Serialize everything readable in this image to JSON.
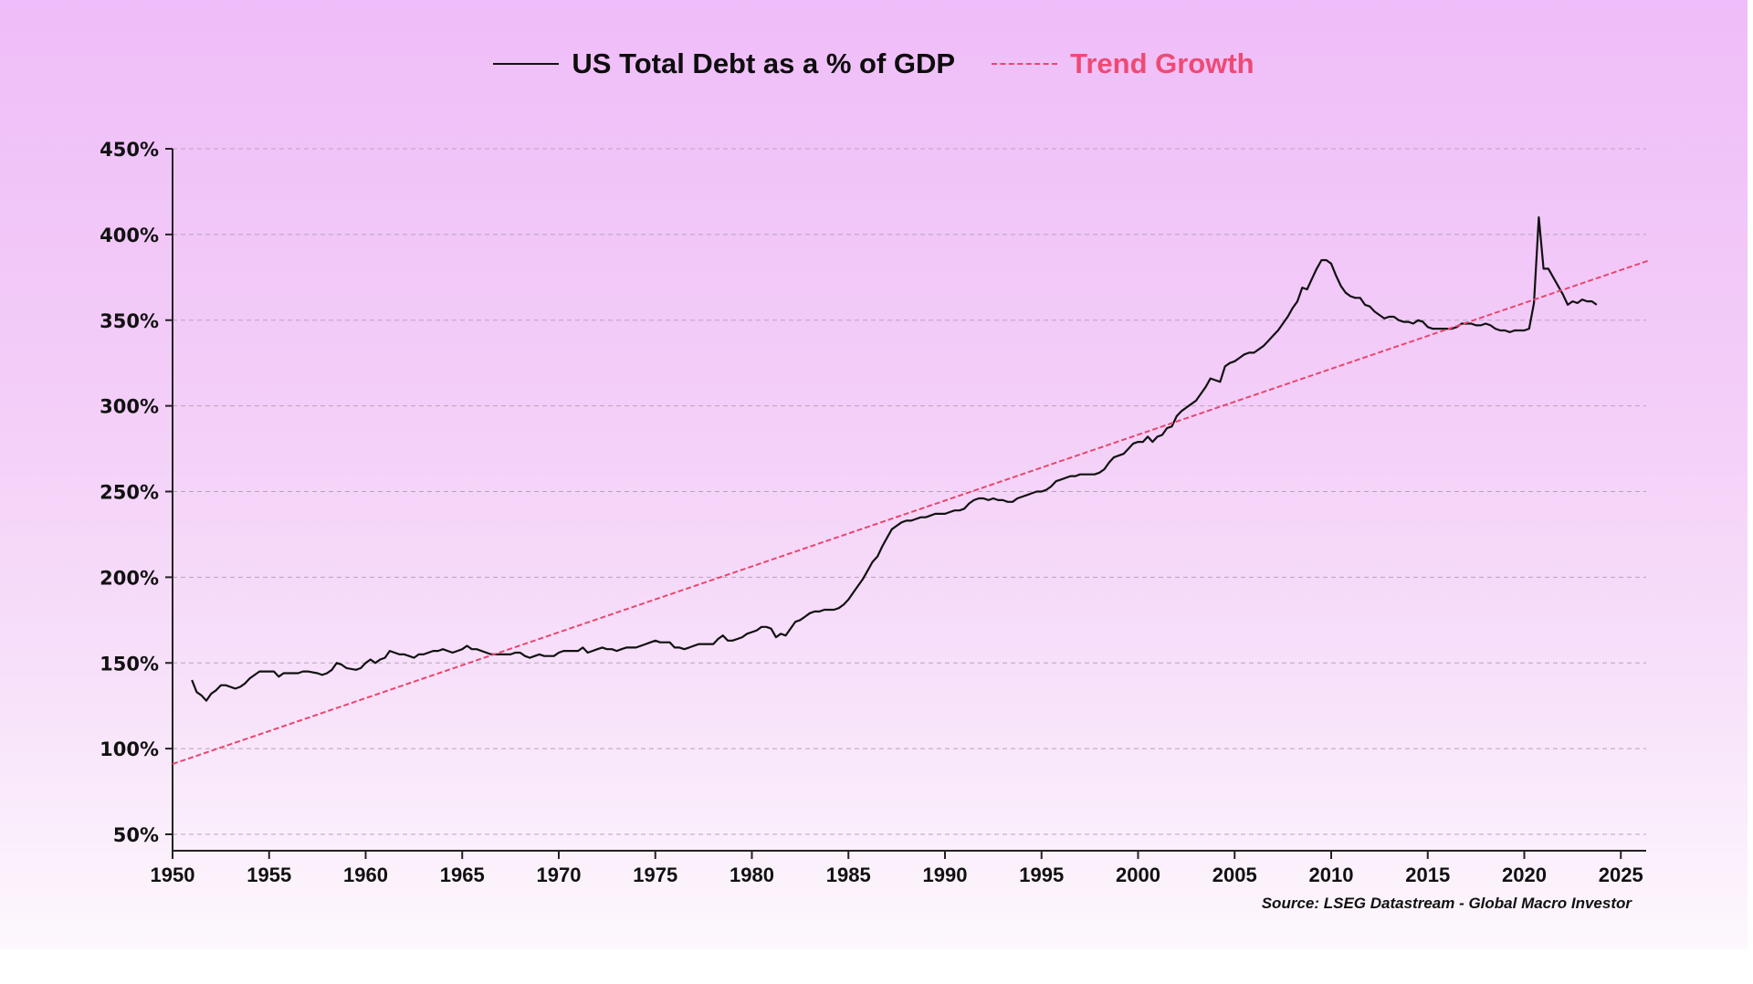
{
  "chart_data": {
    "type": "line",
    "title": "",
    "xlabel": "",
    "ylabel": "",
    "xlim": [
      1950,
      2026.5
    ],
    "ylim": [
      40,
      450
    ],
    "grid": "horizontal-dashed",
    "legend_placement": "top-center",
    "x_ticks": [
      "1950",
      "1955",
      "1960",
      "1965",
      "1970",
      "1975",
      "1980",
      "1985",
      "1990",
      "1995",
      "2000",
      "2005",
      "2010",
      "2015",
      "2020",
      "2025"
    ],
    "x_tick_values": [
      1950,
      1955,
      1960,
      1965,
      1970,
      1975,
      1980,
      1985,
      1990,
      1995,
      2000,
      2005,
      2010,
      2015,
      2020,
      2025
    ],
    "y_ticks": [
      "50%",
      "100%",
      "150%",
      "200%",
      "250%",
      "300%",
      "350%",
      "400%",
      "450%"
    ],
    "y_tick_values": [
      50,
      100,
      150,
      200,
      250,
      300,
      350,
      400,
      450
    ],
    "source": "Source: LSEG Datastream - Global Macro Investor",
    "series": [
      {
        "name": "US Total Debt as a % of GDP",
        "color": "#111111",
        "style": "solid",
        "points": [
          [
            1951.0,
            140
          ],
          [
            1951.25,
            133
          ],
          [
            1951.5,
            131
          ],
          [
            1951.75,
            128
          ],
          [
            1952.0,
            132
          ],
          [
            1952.25,
            134
          ],
          [
            1952.5,
            137
          ],
          [
            1952.75,
            137
          ],
          [
            1953.0,
            136
          ],
          [
            1953.25,
            135
          ],
          [
            1953.5,
            136
          ],
          [
            1953.75,
            138
          ],
          [
            1954.0,
            141
          ],
          [
            1954.25,
            143
          ],
          [
            1954.5,
            145
          ],
          [
            1954.75,
            145
          ],
          [
            1955.0,
            145
          ],
          [
            1955.25,
            145
          ],
          [
            1955.5,
            142
          ],
          [
            1955.75,
            144
          ],
          [
            1956.0,
            144
          ],
          [
            1956.5,
            144
          ],
          [
            1956.75,
            145
          ],
          [
            1957.0,
            145
          ],
          [
            1957.5,
            144
          ],
          [
            1957.75,
            143
          ],
          [
            1958.0,
            144
          ],
          [
            1958.25,
            146
          ],
          [
            1958.5,
            150
          ],
          [
            1958.75,
            149
          ],
          [
            1959.0,
            147
          ],
          [
            1959.5,
            146
          ],
          [
            1959.75,
            147
          ],
          [
            1960.0,
            150
          ],
          [
            1960.25,
            152
          ],
          [
            1960.5,
            150
          ],
          [
            1960.75,
            152
          ],
          [
            1961.0,
            153
          ],
          [
            1961.25,
            157
          ],
          [
            1961.5,
            156
          ],
          [
            1961.75,
            155
          ],
          [
            1962.0,
            155
          ],
          [
            1962.25,
            154
          ],
          [
            1962.5,
            153
          ],
          [
            1962.75,
            155
          ],
          [
            1963.0,
            155
          ],
          [
            1963.25,
            156
          ],
          [
            1963.5,
            157
          ],
          [
            1963.75,
            157
          ],
          [
            1964.0,
            158
          ],
          [
            1964.25,
            157
          ],
          [
            1964.5,
            156
          ],
          [
            1964.75,
            157
          ],
          [
            1965.0,
            158
          ],
          [
            1965.25,
            160
          ],
          [
            1965.5,
            158
          ],
          [
            1965.75,
            158
          ],
          [
            1966.0,
            157
          ],
          [
            1966.25,
            156
          ],
          [
            1966.5,
            155
          ],
          [
            1966.75,
            155
          ],
          [
            1967.0,
            155
          ],
          [
            1967.25,
            155
          ],
          [
            1967.5,
            155
          ],
          [
            1967.75,
            156
          ],
          [
            1968.0,
            156
          ],
          [
            1968.25,
            154
          ],
          [
            1968.5,
            153
          ],
          [
            1968.75,
            154
          ],
          [
            1969.0,
            155
          ],
          [
            1969.25,
            154
          ],
          [
            1969.5,
            154
          ],
          [
            1969.75,
            154
          ],
          [
            1970.0,
            156
          ],
          [
            1970.25,
            157
          ],
          [
            1970.5,
            157
          ],
          [
            1970.75,
            157
          ],
          [
            1971.0,
            157
          ],
          [
            1971.25,
            159
          ],
          [
            1971.5,
            156
          ],
          [
            1971.75,
            157
          ],
          [
            1972.0,
            158
          ],
          [
            1972.25,
            159
          ],
          [
            1972.5,
            158
          ],
          [
            1972.75,
            158
          ],
          [
            1973.0,
            157
          ],
          [
            1973.25,
            158
          ],
          [
            1973.5,
            159
          ],
          [
            1973.75,
            159
          ],
          [
            1974.0,
            159
          ],
          [
            1974.25,
            160
          ],
          [
            1974.5,
            161
          ],
          [
            1974.75,
            162
          ],
          [
            1975.0,
            163
          ],
          [
            1975.25,
            162
          ],
          [
            1975.5,
            162
          ],
          [
            1975.75,
            162
          ],
          [
            1976.0,
            159
          ],
          [
            1976.25,
            159
          ],
          [
            1976.5,
            158
          ],
          [
            1976.75,
            159
          ],
          [
            1977.0,
            160
          ],
          [
            1977.25,
            161
          ],
          [
            1977.5,
            161
          ],
          [
            1977.75,
            161
          ],
          [
            1978.0,
            161
          ],
          [
            1978.25,
            164
          ],
          [
            1978.5,
            166
          ],
          [
            1978.75,
            163
          ],
          [
            1979.0,
            163
          ],
          [
            1979.25,
            164
          ],
          [
            1979.5,
            165
          ],
          [
            1979.75,
            167
          ],
          [
            1980.0,
            168
          ],
          [
            1980.25,
            169
          ],
          [
            1980.5,
            171
          ],
          [
            1980.75,
            171
          ],
          [
            1981.0,
            170
          ],
          [
            1981.25,
            165
          ],
          [
            1981.5,
            167
          ],
          [
            1981.75,
            166
          ],
          [
            1982.0,
            170
          ],
          [
            1982.25,
            174
          ],
          [
            1982.5,
            175
          ],
          [
            1982.75,
            177
          ],
          [
            1983.0,
            179
          ],
          [
            1983.25,
            180
          ],
          [
            1983.5,
            180
          ],
          [
            1983.75,
            181
          ],
          [
            1984.0,
            181
          ],
          [
            1984.25,
            181
          ],
          [
            1984.5,
            182
          ],
          [
            1984.75,
            184
          ],
          [
            1985.0,
            187
          ],
          [
            1985.25,
            191
          ],
          [
            1985.5,
            195
          ],
          [
            1985.75,
            199
          ],
          [
            1986.0,
            204
          ],
          [
            1986.25,
            209
          ],
          [
            1986.5,
            212
          ],
          [
            1986.75,
            218
          ],
          [
            1987.0,
            223
          ],
          [
            1987.25,
            228
          ],
          [
            1987.5,
            230
          ],
          [
            1987.75,
            232
          ],
          [
            1988.0,
            233
          ],
          [
            1988.25,
            233
          ],
          [
            1988.5,
            234
          ],
          [
            1988.75,
            235
          ],
          [
            1989.0,
            235
          ],
          [
            1989.25,
            236
          ],
          [
            1989.5,
            237
          ],
          [
            1989.75,
            237
          ],
          [
            1990.0,
            237
          ],
          [
            1990.25,
            238
          ],
          [
            1990.5,
            239
          ],
          [
            1990.75,
            239
          ],
          [
            1991.0,
            240
          ],
          [
            1991.25,
            243
          ],
          [
            1991.5,
            245
          ],
          [
            1991.75,
            246
          ],
          [
            1992.0,
            246
          ],
          [
            1992.25,
            245
          ],
          [
            1992.5,
            246
          ],
          [
            1992.75,
            245
          ],
          [
            1993.0,
            245
          ],
          [
            1993.25,
            244
          ],
          [
            1993.5,
            244
          ],
          [
            1993.75,
            246
          ],
          [
            1994.0,
            247
          ],
          [
            1994.25,
            248
          ],
          [
            1994.5,
            249
          ],
          [
            1994.75,
            250
          ],
          [
            1995.0,
            250
          ],
          [
            1995.25,
            251
          ],
          [
            1995.5,
            253
          ],
          [
            1995.75,
            256
          ],
          [
            1996.0,
            257
          ],
          [
            1996.25,
            258
          ],
          [
            1996.5,
            259
          ],
          [
            1996.75,
            259
          ],
          [
            1997.0,
            260
          ],
          [
            1997.25,
            260
          ],
          [
            1997.5,
            260
          ],
          [
            1997.75,
            260
          ],
          [
            1998.0,
            261
          ],
          [
            1998.25,
            263
          ],
          [
            1998.5,
            267
          ],
          [
            1998.75,
            270
          ],
          [
            1999.0,
            271
          ],
          [
            1999.25,
            272
          ],
          [
            1999.5,
            275
          ],
          [
            1999.75,
            278
          ],
          [
            2000.0,
            279
          ],
          [
            2000.25,
            279
          ],
          [
            2000.5,
            282
          ],
          [
            2000.75,
            279
          ],
          [
            2001.0,
            282
          ],
          [
            2001.25,
            283
          ],
          [
            2001.5,
            287
          ],
          [
            2001.75,
            288
          ],
          [
            2002.0,
            294
          ],
          [
            2002.25,
            297
          ],
          [
            2002.5,
            299
          ],
          [
            2002.75,
            301
          ],
          [
            2003.0,
            303
          ],
          [
            2003.25,
            307
          ],
          [
            2003.5,
            311
          ],
          [
            2003.75,
            316
          ],
          [
            2004.0,
            315
          ],
          [
            2004.25,
            314
          ],
          [
            2004.5,
            323
          ],
          [
            2004.75,
            325
          ],
          [
            2005.0,
            326
          ],
          [
            2005.25,
            328
          ],
          [
            2005.5,
            330
          ],
          [
            2005.75,
            331
          ],
          [
            2006.0,
            331
          ],
          [
            2006.25,
            333
          ],
          [
            2006.5,
            335
          ],
          [
            2006.75,
            338
          ],
          [
            2007.0,
            341
          ],
          [
            2007.25,
            344
          ],
          [
            2007.5,
            348
          ],
          [
            2007.75,
            352
          ],
          [
            2008.0,
            357
          ],
          [
            2008.25,
            361
          ],
          [
            2008.5,
            369
          ],
          [
            2008.75,
            368
          ],
          [
            2009.0,
            374
          ],
          [
            2009.25,
            380
          ],
          [
            2009.5,
            385
          ],
          [
            2009.75,
            385
          ],
          [
            2010.0,
            383
          ],
          [
            2010.25,
            376
          ],
          [
            2010.5,
            370
          ],
          [
            2010.75,
            366
          ],
          [
            2011.0,
            364
          ],
          [
            2011.25,
            363
          ],
          [
            2011.5,
            363
          ],
          [
            2011.75,
            359
          ],
          [
            2012.0,
            358
          ],
          [
            2012.25,
            355
          ],
          [
            2012.5,
            353
          ],
          [
            2012.75,
            351
          ],
          [
            2013.0,
            352
          ],
          [
            2013.25,
            352
          ],
          [
            2013.5,
            350
          ],
          [
            2013.75,
            349
          ],
          [
            2014.0,
            349
          ],
          [
            2014.25,
            348
          ],
          [
            2014.5,
            350
          ],
          [
            2014.75,
            349
          ],
          [
            2015.0,
            346
          ],
          [
            2015.25,
            345
          ],
          [
            2015.5,
            345
          ],
          [
            2015.75,
            345
          ],
          [
            2016.0,
            345
          ],
          [
            2016.25,
            345
          ],
          [
            2016.5,
            346
          ],
          [
            2016.75,
            348
          ],
          [
            2017.0,
            348
          ],
          [
            2017.25,
            348
          ],
          [
            2017.5,
            347
          ],
          [
            2017.75,
            347
          ],
          [
            2018.0,
            348
          ],
          [
            2018.25,
            347
          ],
          [
            2018.5,
            345
          ],
          [
            2018.75,
            344
          ],
          [
            2019.0,
            344
          ],
          [
            2019.25,
            343
          ],
          [
            2019.5,
            344
          ],
          [
            2019.75,
            344
          ],
          [
            2020.0,
            344
          ],
          [
            2020.25,
            345
          ],
          [
            2020.5,
            360
          ],
          [
            2020.75,
            410
          ],
          [
            2021.0,
            380
          ],
          [
            2021.25,
            380
          ],
          [
            2021.5,
            375
          ],
          [
            2021.75,
            370
          ],
          [
            2022.0,
            365
          ],
          [
            2022.25,
            359
          ],
          [
            2022.5,
            361
          ],
          [
            2022.75,
            360
          ],
          [
            2023.0,
            362
          ],
          [
            2023.25,
            361
          ],
          [
            2023.5,
            361
          ],
          [
            2023.75,
            359
          ]
        ]
      },
      {
        "name": "Trend Growth",
        "color": "#e8476e",
        "style": "dashed",
        "points": [
          [
            1950.0,
            91
          ],
          [
            2026.5,
            385
          ]
        ]
      }
    ]
  },
  "legend": {
    "items": [
      {
        "label": "US Total Debt as a % of GDP",
        "color": "#0d0d0d"
      },
      {
        "label": "Trend Growth",
        "color": "#ee4a74"
      }
    ]
  },
  "colors": {
    "background_top": "#efbdf9",
    "background_bottom": "#fdf8fd",
    "grid": "#b9a2bd",
    "axis": "#222222"
  }
}
